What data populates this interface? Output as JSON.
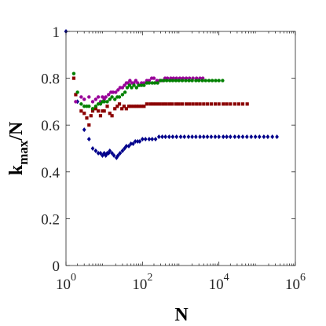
{
  "chart_data": {
    "type": "scatter",
    "title": "",
    "xlabel": "N",
    "ylabel": {
      "main": "k",
      "sub": "max",
      "suffix": "/N"
    },
    "xscale": "log",
    "xlim": [
      1,
      1000000
    ],
    "ylim": [
      0,
      1
    ],
    "grid": false,
    "legend": "none",
    "x_ticks": [
      {
        "base": "10",
        "exp": "0"
      },
      {
        "base": "10",
        "exp": "2"
      },
      {
        "base": "10",
        "exp": "4"
      },
      {
        "base": "10",
        "exp": "6"
      }
    ],
    "x_tick_values": [
      1,
      100,
      10000,
      1000000
    ],
    "y_ticks": [
      "0",
      "0.2",
      "0.4",
      "0.6",
      "0.8",
      "1"
    ],
    "y_tick_values": [
      0,
      0.2,
      0.4,
      0.6,
      0.8,
      1
    ],
    "series": [
      {
        "color": "#00008b",
        "marker": "diamond",
        "points": [
          [
            1,
            1.0
          ],
          [
            2,
            0.7
          ],
          [
            3,
            0.58
          ],
          [
            4,
            0.54
          ],
          [
            5,
            0.5
          ],
          [
            6,
            0.49
          ],
          [
            7,
            0.48
          ],
          [
            8,
            0.48
          ],
          [
            9,
            0.47
          ],
          [
            10,
            0.48
          ],
          [
            11,
            0.47
          ],
          [
            12,
            0.48
          ],
          [
            13,
            0.48
          ],
          [
            14,
            0.49
          ],
          [
            16,
            0.48
          ],
          [
            18,
            0.47
          ],
          [
            21,
            0.46
          ],
          [
            23,
            0.47
          ],
          [
            26,
            0.48
          ],
          [
            30,
            0.49
          ],
          [
            34,
            0.5
          ],
          [
            38,
            0.51
          ],
          [
            44,
            0.51
          ],
          [
            50,
            0.52
          ],
          [
            57,
            0.52
          ],
          [
            65,
            0.53
          ],
          [
            75,
            0.53
          ],
          [
            85,
            0.53
          ],
          [
            100,
            0.54
          ],
          [
            120,
            0.54
          ],
          [
            150,
            0.54
          ],
          [
            180,
            0.54
          ],
          [
            220,
            0.54
          ],
          [
            270,
            0.55
          ],
          [
            330,
            0.55
          ],
          [
            400,
            0.55
          ],
          [
            500,
            0.55
          ],
          [
            620,
            0.55
          ],
          [
            780,
            0.55
          ],
          [
            1000,
            0.55
          ],
          [
            1250,
            0.55
          ],
          [
            1600,
            0.55
          ],
          [
            2000,
            0.55
          ],
          [
            2500,
            0.55
          ],
          [
            3200,
            0.55
          ],
          [
            4000,
            0.55
          ],
          [
            5000,
            0.55
          ],
          [
            6300,
            0.55
          ],
          [
            8000,
            0.55
          ],
          [
            10000,
            0.55
          ],
          [
            13000,
            0.55
          ],
          [
            16000,
            0.55
          ],
          [
            20000,
            0.55
          ],
          [
            26000,
            0.55
          ],
          [
            33000,
            0.55
          ],
          [
            42000,
            0.55
          ],
          [
            54000,
            0.55
          ],
          [
            70000,
            0.55
          ],
          [
            90000,
            0.55
          ],
          [
            115000,
            0.55
          ],
          [
            150000,
            0.55
          ],
          [
            190000,
            0.55
          ],
          [
            250000,
            0.55
          ],
          [
            330000,
            0.55
          ]
        ]
      },
      {
        "color": "#8b0000",
        "marker": "square",
        "points": [
          [
            1.6,
            0.8
          ],
          [
            1.8,
            0.73
          ],
          [
            2.5,
            0.66
          ],
          [
            3,
            0.65
          ],
          [
            3.5,
            0.63
          ],
          [
            4,
            0.6
          ],
          [
            4.5,
            0.64
          ],
          [
            5,
            0.66
          ],
          [
            6,
            0.67
          ],
          [
            7,
            0.66
          ],
          [
            8,
            0.64
          ],
          [
            9,
            0.66
          ],
          [
            10,
            0.66
          ],
          [
            12,
            0.68
          ],
          [
            14,
            0.65
          ],
          [
            16,
            0.64
          ],
          [
            19,
            0.67
          ],
          [
            22,
            0.68
          ],
          [
            25,
            0.69
          ],
          [
            29,
            0.67
          ],
          [
            33,
            0.68
          ],
          [
            38,
            0.67
          ],
          [
            44,
            0.68
          ],
          [
            50,
            0.68
          ],
          [
            60,
            0.68
          ],
          [
            70,
            0.68
          ],
          [
            80,
            0.68
          ],
          [
            95,
            0.68
          ],
          [
            110,
            0.68
          ],
          [
            130,
            0.69
          ],
          [
            160,
            0.69
          ],
          [
            190,
            0.69
          ],
          [
            230,
            0.69
          ],
          [
            280,
            0.69
          ],
          [
            340,
            0.69
          ],
          [
            410,
            0.69
          ],
          [
            500,
            0.69
          ],
          [
            600,
            0.69
          ],
          [
            750,
            0.69
          ],
          [
            900,
            0.69
          ],
          [
            1100,
            0.69
          ],
          [
            1400,
            0.69
          ],
          [
            1700,
            0.69
          ],
          [
            2100,
            0.69
          ],
          [
            2600,
            0.69
          ],
          [
            3200,
            0.69
          ],
          [
            4000,
            0.69
          ],
          [
            5000,
            0.69
          ],
          [
            6300,
            0.69
          ],
          [
            8000,
            0.69
          ],
          [
            10000,
            0.69
          ],
          [
            13000,
            0.69
          ],
          [
            16000,
            0.69
          ],
          [
            20000,
            0.69
          ],
          [
            26000,
            0.69
          ],
          [
            33000,
            0.69
          ],
          [
            42000,
            0.69
          ],
          [
            55000,
            0.69
          ]
        ]
      },
      {
        "color": "#990099",
        "marker": "circle",
        "points": [
          [
            1.8,
            0.7
          ],
          [
            2.5,
            0.72
          ],
          [
            3,
            0.71
          ],
          [
            4,
            0.72
          ],
          [
            5,
            0.7
          ],
          [
            6,
            0.71
          ],
          [
            7,
            0.72
          ],
          [
            8,
            0.7
          ],
          [
            9,
            0.72
          ],
          [
            10,
            0.71
          ],
          [
            11,
            0.72
          ],
          [
            13,
            0.73
          ],
          [
            15,
            0.74
          ],
          [
            17,
            0.74
          ],
          [
            20,
            0.74
          ],
          [
            23,
            0.75
          ],
          [
            26,
            0.76
          ],
          [
            30,
            0.76
          ],
          [
            34,
            0.77
          ],
          [
            38,
            0.78
          ],
          [
            42,
            0.78
          ],
          [
            47,
            0.79
          ],
          [
            53,
            0.78
          ],
          [
            60,
            0.78
          ],
          [
            67,
            0.79
          ],
          [
            75,
            0.78
          ],
          [
            85,
            0.77
          ],
          [
            95,
            0.78
          ],
          [
            110,
            0.78
          ],
          [
            130,
            0.79
          ],
          [
            150,
            0.79
          ],
          [
            175,
            0.8
          ],
          [
            200,
            0.8
          ],
          [
            240,
            0.79
          ],
          [
            280,
            0.79
          ],
          [
            330,
            0.79
          ],
          [
            390,
            0.8
          ],
          [
            450,
            0.8
          ],
          [
            550,
            0.8
          ],
          [
            650,
            0.8
          ],
          [
            780,
            0.8
          ],
          [
            950,
            0.8
          ],
          [
            1150,
            0.8
          ],
          [
            1400,
            0.8
          ],
          [
            1700,
            0.8
          ],
          [
            2100,
            0.8
          ],
          [
            2600,
            0.8
          ],
          [
            3200,
            0.8
          ],
          [
            3800,
            0.8
          ]
        ]
      },
      {
        "color": "#008000",
        "marker": "circle",
        "points": [
          [
            1.6,
            0.82
          ],
          [
            2,
            0.74
          ],
          [
            2.5,
            0.69
          ],
          [
            3,
            0.68
          ],
          [
            3.5,
            0.68
          ],
          [
            4,
            0.68
          ],
          [
            5,
            0.67
          ],
          [
            6,
            0.68
          ],
          [
            7,
            0.69
          ],
          [
            8,
            0.69
          ],
          [
            9,
            0.7
          ],
          [
            10,
            0.7
          ],
          [
            12,
            0.7
          ],
          [
            14,
            0.71
          ],
          [
            16,
            0.72
          ],
          [
            19,
            0.71
          ],
          [
            22,
            0.72
          ],
          [
            25,
            0.72
          ],
          [
            30,
            0.73
          ],
          [
            35,
            0.74
          ],
          [
            40,
            0.76
          ],
          [
            46,
            0.77
          ],
          [
            52,
            0.76
          ],
          [
            60,
            0.77
          ],
          [
            70,
            0.76
          ],
          [
            80,
            0.77
          ],
          [
            95,
            0.77
          ],
          [
            110,
            0.77
          ],
          [
            130,
            0.78
          ],
          [
            150,
            0.78
          ],
          [
            180,
            0.78
          ],
          [
            210,
            0.78
          ],
          [
            250,
            0.78
          ],
          [
            300,
            0.79
          ],
          [
            360,
            0.79
          ],
          [
            430,
            0.79
          ],
          [
            520,
            0.79
          ],
          [
            620,
            0.79
          ],
          [
            750,
            0.79
          ],
          [
            900,
            0.79
          ],
          [
            1100,
            0.79
          ],
          [
            1350,
            0.79
          ],
          [
            1650,
            0.79
          ],
          [
            2000,
            0.79
          ],
          [
            2500,
            0.79
          ],
          [
            3000,
            0.79
          ],
          [
            3700,
            0.79
          ],
          [
            4500,
            0.79
          ],
          [
            5500,
            0.79
          ],
          [
            6700,
            0.79
          ],
          [
            8200,
            0.79
          ],
          [
            10000,
            0.79
          ],
          [
            12500,
            0.79
          ]
        ]
      }
    ]
  }
}
